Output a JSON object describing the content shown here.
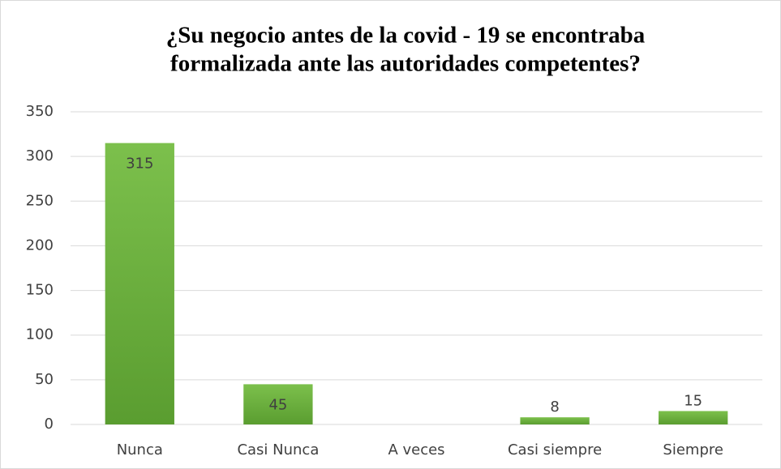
{
  "chart_data": {
    "type": "bar",
    "title": [
      "¿Su negocio antes de la covid - 19 se encontraba",
      "formalizada ante las autoridades competentes?"
    ],
    "categories": [
      "Nunca",
      "Casi Nunca",
      "A veces",
      "Casi siempre",
      "Siempre"
    ],
    "values": [
      315,
      45,
      null,
      8,
      15
    ],
    "color": "#70ad47",
    "ylim": [
      0,
      350
    ],
    "yticks": [
      0,
      50,
      100,
      150,
      200,
      250,
      300,
      350
    ],
    "grid": true
  }
}
